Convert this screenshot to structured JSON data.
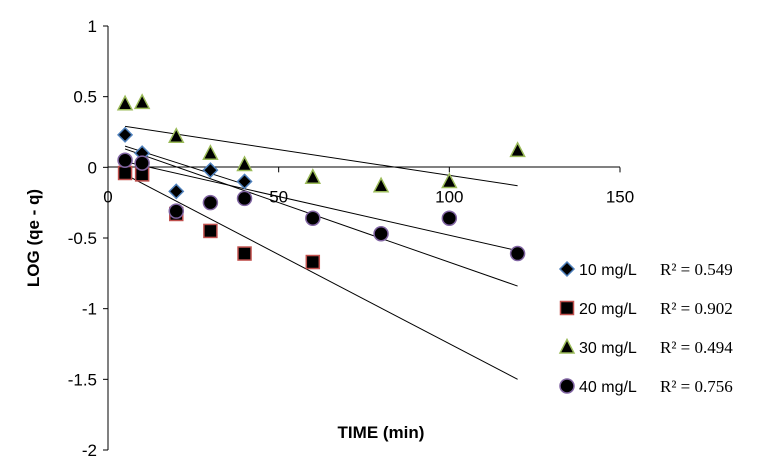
{
  "chart_data": {
    "type": "scatter",
    "title": "",
    "xlabel": "TIME (min)",
    "ylabel": "LOG (qe - q)",
    "xlim": [
      0,
      150
    ],
    "ylim": [
      -2,
      1
    ],
    "xticks": [
      "0",
      "50",
      "100",
      "150"
    ],
    "yticks": [
      "1",
      "0.5",
      "0",
      "-0.5",
      "-1",
      "-1.5",
      "-2"
    ],
    "grid": false,
    "legend_position": "right",
    "series": [
      {
        "name": "10 mg/L",
        "r2_label": "R² = 0.549",
        "marker": "diamond",
        "color": "#000000",
        "outline": "#4f81bd",
        "x": [
          5,
          10,
          20,
          30,
          40
        ],
        "y": [
          0.23,
          0.1,
          -0.17,
          -0.02,
          -0.1
        ],
        "trendline": {
          "x": [
            5,
            40
          ],
          "y": [
            0.15,
            -0.12
          ]
        }
      },
      {
        "name": "20 mg/L",
        "r2_label": "R² = 0.902",
        "marker": "square",
        "color": "#000000",
        "outline": "#c0504d",
        "x": [
          5,
          10,
          20,
          30,
          40,
          60
        ],
        "y": [
          -0.04,
          -0.05,
          -0.33,
          -0.45,
          -0.61,
          -0.67
        ],
        "trendline": {
          "x": [
            5,
            120
          ],
          "y": [
            -0.05,
            -1.5
          ]
        }
      },
      {
        "name": "30 mg/L",
        "r2_label": "R² = 0.494",
        "marker": "triangle",
        "color": "#000000",
        "outline": "#9bbb59",
        "x": [
          5,
          10,
          20,
          30,
          40,
          60,
          80,
          100,
          120
        ],
        "y": [
          0.45,
          0.46,
          0.22,
          0.1,
          0.02,
          -0.07,
          -0.13,
          -0.1,
          0.12
        ],
        "trendline": {
          "x": [
            5,
            120
          ],
          "y": [
            0.29,
            -0.13
          ]
        }
      },
      {
        "name": "40 mg/L",
        "r2_label": "R² = 0.756",
        "marker": "circle",
        "color": "#000000",
        "outline": "#8064a2",
        "x": [
          5,
          10,
          20,
          30,
          40,
          60,
          80,
          100,
          120
        ],
        "y": [
          0.05,
          0.03,
          -0.31,
          -0.25,
          -0.22,
          -0.36,
          -0.47,
          -0.36,
          -0.61
        ],
        "trendline": {
          "x": [
            5,
            120
          ],
          "y": [
            0.04,
            -0.59
          ]
        }
      },
      {
        "name": "",
        "marker": "none",
        "role": "extra-trendline",
        "trendline": {
          "x": [
            5,
            120
          ],
          "y": [
            0.13,
            -0.84
          ]
        }
      }
    ]
  }
}
